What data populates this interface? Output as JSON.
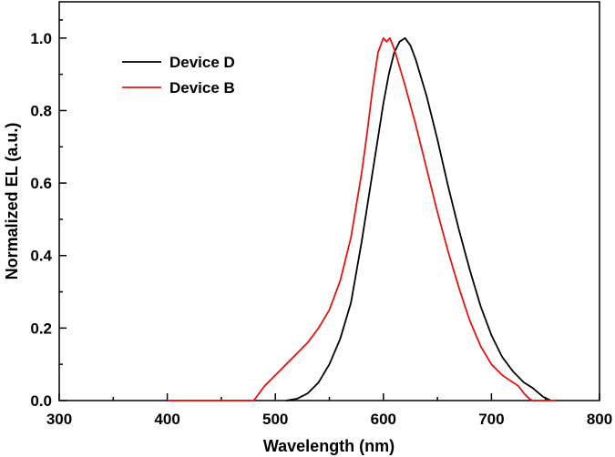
{
  "chart_data": {
    "type": "line",
    "xlabel": "Wavelength (nm)",
    "ylabel": "Normalized EL (a.u.)",
    "xlim": [
      300,
      800
    ],
    "ylim": [
      0.0,
      1.1
    ],
    "x_ticks": [
      300,
      400,
      500,
      600,
      700,
      800
    ],
    "x_tick_labels": [
      "300",
      "400",
      "500",
      "600",
      "700",
      "800"
    ],
    "y_ticks": [
      0.0,
      0.2,
      0.4,
      0.6,
      0.8,
      1.0
    ],
    "y_tick_labels": [
      "0.0",
      "0.2",
      "0.4",
      "0.6",
      "0.8",
      "1.0"
    ],
    "grid": false,
    "legend_position": "top-left",
    "series": [
      {
        "name": "Device D",
        "color": "#000000",
        "points": [
          [
            510,
            0.0
          ],
          [
            520,
            0.005
          ],
          [
            530,
            0.02
          ],
          [
            540,
            0.05
          ],
          [
            550,
            0.1
          ],
          [
            560,
            0.17
          ],
          [
            570,
            0.27
          ],
          [
            580,
            0.44
          ],
          [
            590,
            0.63
          ],
          [
            600,
            0.82
          ],
          [
            605,
            0.9
          ],
          [
            610,
            0.96
          ],
          [
            615,
            0.99
          ],
          [
            620,
            1.0
          ],
          [
            625,
            0.98
          ],
          [
            630,
            0.94
          ],
          [
            640,
            0.84
          ],
          [
            650,
            0.72
          ],
          [
            660,
            0.59
          ],
          [
            670,
            0.47
          ],
          [
            680,
            0.36
          ],
          [
            690,
            0.26
          ],
          [
            700,
            0.18
          ],
          [
            710,
            0.12
          ],
          [
            720,
            0.08
          ],
          [
            730,
            0.05
          ],
          [
            738,
            0.035
          ],
          [
            742,
            0.025
          ],
          [
            748,
            0.01
          ],
          [
            755,
            0.0
          ]
        ]
      },
      {
        "name": "Device B",
        "color": "#e8130f",
        "points": [
          [
            400,
            0.0
          ],
          [
            480,
            0.0
          ],
          [
            485,
            0.02
          ],
          [
            490,
            0.04
          ],
          [
            500,
            0.07
          ],
          [
            510,
            0.1
          ],
          [
            520,
            0.13
          ],
          [
            530,
            0.16
          ],
          [
            540,
            0.2
          ],
          [
            550,
            0.25
          ],
          [
            560,
            0.33
          ],
          [
            570,
            0.45
          ],
          [
            580,
            0.63
          ],
          [
            585,
            0.74
          ],
          [
            590,
            0.86
          ],
          [
            595,
            0.96
          ],
          [
            600,
            1.0
          ],
          [
            603,
            0.99
          ],
          [
            606,
            1.0
          ],
          [
            610,
            0.97
          ],
          [
            615,
            0.92
          ],
          [
            620,
            0.87
          ],
          [
            630,
            0.76
          ],
          [
            640,
            0.64
          ],
          [
            650,
            0.52
          ],
          [
            660,
            0.41
          ],
          [
            670,
            0.31
          ],
          [
            680,
            0.22
          ],
          [
            690,
            0.15
          ],
          [
            700,
            0.1
          ],
          [
            710,
            0.07
          ],
          [
            720,
            0.05
          ],
          [
            725,
            0.04
          ],
          [
            730,
            0.02
          ],
          [
            735,
            0.005
          ],
          [
            738,
            0.0
          ],
          [
            760,
            0.0
          ]
        ]
      }
    ]
  }
}
